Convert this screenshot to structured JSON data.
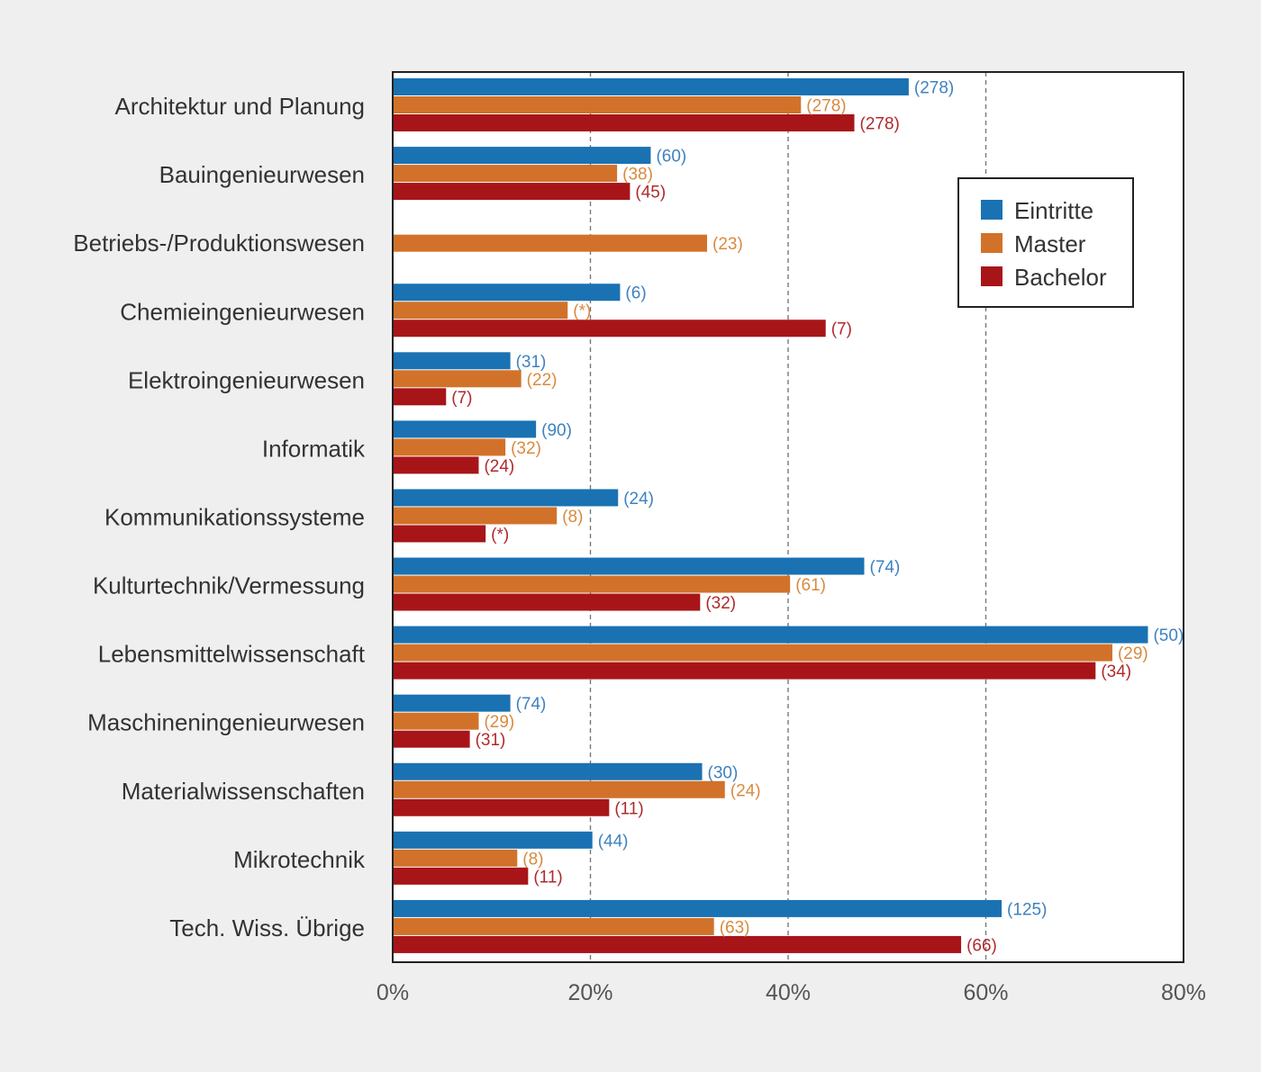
{
  "chart_data": {
    "type": "bar",
    "orientation": "horizontal",
    "categories": [
      "Architektur und Planung",
      "Bauingenieurwesen",
      "Betriebs-/Produktionswesen",
      "Chemieingenieurwesen",
      "Elektroingenieurwesen",
      "Informatik",
      "Kommunikationssysteme",
      "Kulturtechnik/Vermessung",
      "Lebensmittelwissenschaft",
      "Maschineningenieurwesen",
      "Materialwissenschaften",
      "Mikrotechnik",
      "Tech. Wiss. Übrige"
    ],
    "series": [
      {
        "name": "Eintritte",
        "color": "#1a72b3",
        "values": [
          52.2,
          26.1,
          null,
          23.0,
          11.9,
          14.5,
          22.8,
          47.7,
          76.4,
          11.9,
          31.3,
          20.2,
          61.6
        ],
        "labels": [
          "(278)",
          "(60)",
          "",
          "(6)",
          "(31)",
          "(90)",
          "(24)",
          "(74)",
          "(50)",
          "(74)",
          "(30)",
          "(44)",
          "(125)"
        ]
      },
      {
        "name": "Master",
        "color": "#d2722a",
        "values": [
          41.3,
          22.7,
          31.8,
          17.7,
          13.0,
          11.4,
          16.6,
          40.2,
          72.8,
          8.7,
          33.6,
          12.6,
          32.5
        ],
        "labels": [
          "(278)",
          "(38)",
          "(23)",
          "(*)",
          "(22)",
          "(32)",
          "(8)",
          "(61)",
          "(29)",
          "(29)",
          "(24)",
          "(8)",
          "(63)"
        ]
      },
      {
        "name": "Bachelor",
        "color": "#a81519",
        "values": [
          46.7,
          24.0,
          null,
          43.8,
          5.4,
          8.7,
          9.4,
          31.1,
          71.1,
          7.8,
          21.9,
          13.7,
          57.5
        ],
        "labels": [
          "(278)",
          "(45)",
          "",
          "(7)",
          "(7)",
          "(24)",
          "(*)",
          "(32)",
          "(34)",
          "(31)",
          "(11)",
          "(11)",
          "(66)"
        ]
      }
    ],
    "xlim": [
      0,
      80
    ],
    "xticks": [
      "0%",
      "20%",
      "40%",
      "60%",
      "80%"
    ],
    "grid": "vertical dashed",
    "legend_position": "upper-right"
  }
}
